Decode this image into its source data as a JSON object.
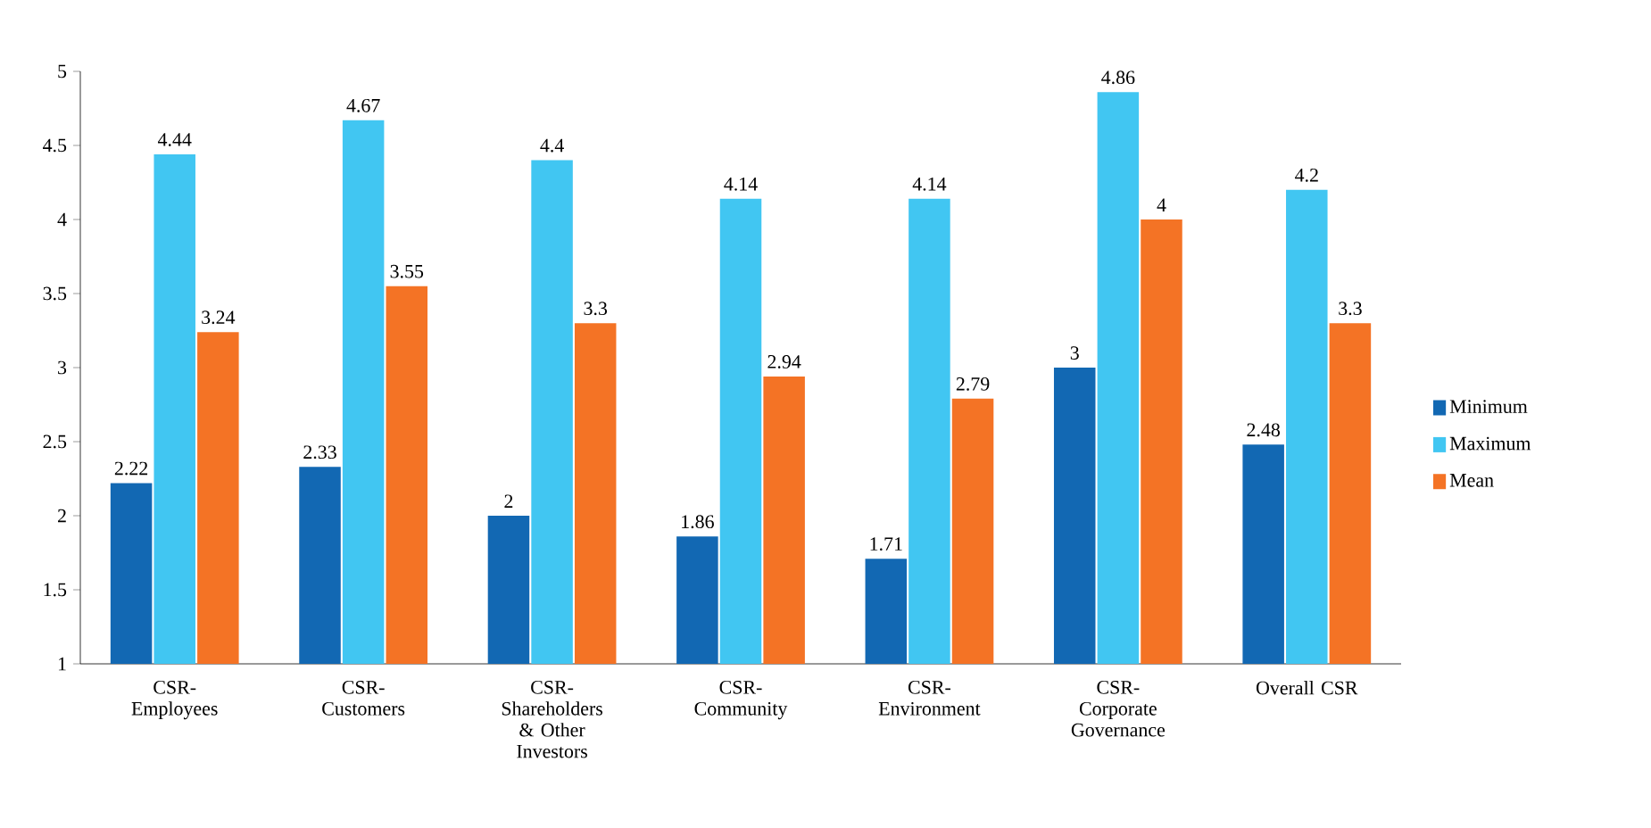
{
  "chart_data": {
    "type": "bar",
    "categories": [
      "CSR- Employees",
      "CSR- Customers",
      "CSR- Shareholders & Other Investors",
      "CSR- Community",
      "CSR- Environment",
      "CSR- Corporate Governance",
      "Overall CSR"
    ],
    "series": [
      {
        "name": "Minimum",
        "color": "#1268b3",
        "values": [
          2.22,
          2.33,
          2,
          1.86,
          1.71,
          3,
          2.48
        ]
      },
      {
        "name": "Maximum",
        "color": "#41c6f2",
        "values": [
          4.44,
          4.67,
          4.4,
          4.14,
          4.14,
          4.86,
          4.2
        ]
      },
      {
        "name": "Mean",
        "color": "#f47325",
        "values": [
          3.24,
          3.55,
          3.3,
          2.94,
          2.79,
          4,
          3.3
        ]
      }
    ],
    "ylim": [
      1,
      5
    ],
    "yticks": [
      1,
      1.5,
      2,
      2.5,
      3,
      3.5,
      4,
      4.5,
      5
    ],
    "data_labels": true,
    "grid": false,
    "legend": "right"
  }
}
